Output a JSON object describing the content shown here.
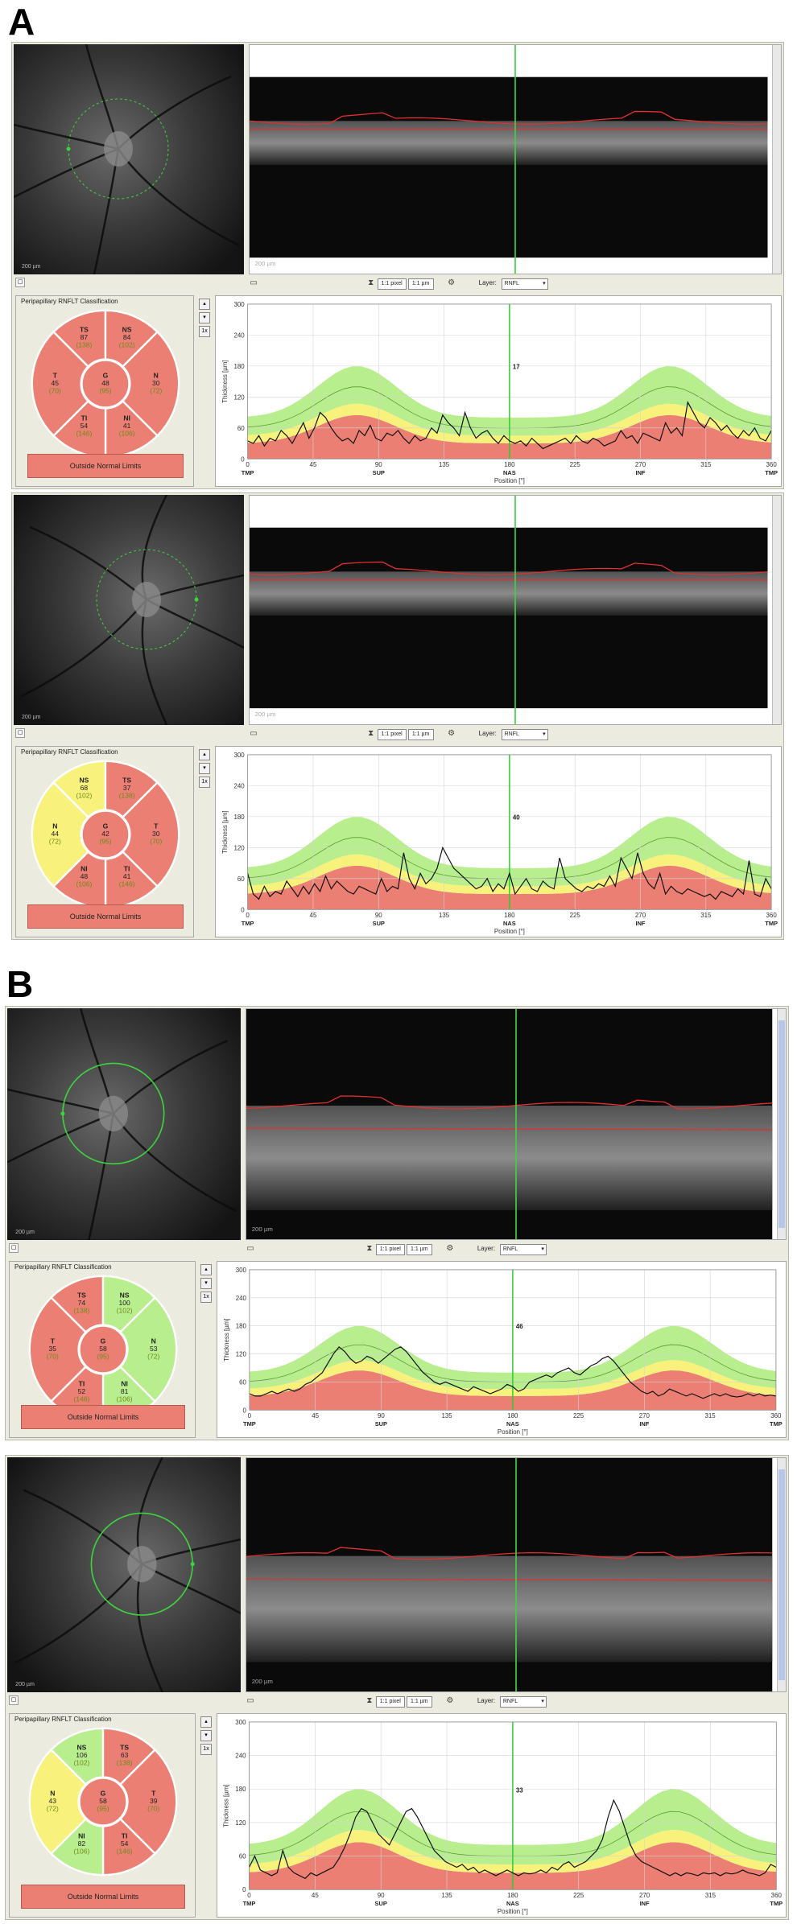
{
  "figure_labels": {
    "a": "A",
    "b": "B"
  },
  "colors": {
    "red": "#ec7f73",
    "yellow": "#f8f17c",
    "green": "#b9ee8e",
    "onl": "#ec7f73"
  },
  "panels": [
    {
      "classification_title": "Peripapillary RNFLT Classification",
      "onl_label": "Outside Normal Limits",
      "toolbar": {
        "zoom1": "1:1 pixel",
        "zoom2": "1:1 µm",
        "layer_label": "Layer:",
        "layer_value": "RNFL"
      },
      "side_button": "1x",
      "scale_bar": "200 µm",
      "sectors": {
        "TS": {
          "name": "TS",
          "value": "87",
          "normal": "(138)",
          "color": "red"
        },
        "NS": {
          "name": "NS",
          "value": "84",
          "normal": "(102)",
          "color": "red"
        },
        "T": {
          "name": "T",
          "value": "45",
          "normal": "(70)",
          "color": "red"
        },
        "G": {
          "name": "G",
          "value": "48",
          "normal": "(95)",
          "color": "red"
        },
        "N": {
          "name": "N",
          "value": "30",
          "normal": "(72)",
          "color": "red"
        },
        "TI": {
          "name": "TI",
          "value": "54",
          "normal": "(146)",
          "color": "red"
        },
        "NI": {
          "name": "NI",
          "value": "41",
          "normal": "(106)",
          "color": "red"
        }
      },
      "mirrored": false,
      "chart_data": {
        "type": "line",
        "ylabel": "Thickness [µm]",
        "xlabel": "Position [°]",
        "x_ticks": [
          "0",
          "45",
          "90",
          "135",
          "180",
          "225",
          "270",
          "315",
          "360"
        ],
        "x_region_labels": [
          "TMP",
          "SUP",
          "NAS",
          "INF",
          "TMP"
        ],
        "y_ticks": [
          "0",
          "60",
          "120",
          "180",
          "240",
          "300"
        ],
        "ylim": [
          0,
          300
        ],
        "marker_value": "17",
        "series": [
          {
            "values": [
              35,
              30,
              45,
              25,
              40,
              35,
              55,
              45,
              30,
              50,
              70,
              40,
              60,
              90,
              80,
              60,
              45,
              35,
              40,
              30,
              55,
              45,
              65,
              40,
              35,
              50,
              45,
              55,
              40,
              30,
              45,
              35,
              40,
              60,
              50,
              85,
              70,
              60,
              45,
              90,
              60,
              40,
              50,
              55,
              40,
              30,
              45,
              35,
              30,
              35,
              25,
              40,
              30,
              20,
              25,
              30,
              35,
              40,
              30,
              45,
              35,
              30,
              40,
              35,
              25,
              30,
              35,
              55,
              40,
              45,
              30,
              50,
              45,
              40,
              35,
              70,
              50,
              60,
              45,
              110,
              90,
              70,
              60,
              80,
              70,
              55,
              65,
              50,
              40,
              55,
              45,
              60,
              40,
              35,
              55
            ]
          }
        ]
      }
    },
    {
      "classification_title": "Peripapillary RNFLT Classification",
      "onl_label": "Outside Normal Limits",
      "toolbar": {
        "zoom1": "1:1 pixel",
        "zoom2": "1:1 µm",
        "layer_label": "Layer:",
        "layer_value": "RNFL"
      },
      "side_button": "1x",
      "scale_bar": "200 µm",
      "sectors": {
        "TS": {
          "name": "NS",
          "value": "68",
          "normal": "(102)",
          "color": "yellow"
        },
        "NS": {
          "name": "TS",
          "value": "37",
          "normal": "(138)",
          "color": "red"
        },
        "T": {
          "name": "N",
          "value": "44",
          "normal": "(72)",
          "color": "yellow"
        },
        "G": {
          "name": "G",
          "value": "42",
          "normal": "(95)",
          "color": "red"
        },
        "N": {
          "name": "T",
          "value": "30",
          "normal": "(70)",
          "color": "red"
        },
        "TI": {
          "name": "NI",
          "value": "48",
          "normal": "(106)",
          "color": "red"
        },
        "NI": {
          "name": "TI",
          "value": "41",
          "normal": "(146)",
          "color": "red"
        }
      },
      "mirrored": true,
      "chart_data": {
        "type": "line",
        "ylabel": "Thickness [µm]",
        "xlabel": "Position [°]",
        "x_ticks": [
          "0",
          "45",
          "90",
          "135",
          "180",
          "225",
          "270",
          "315",
          "360"
        ],
        "x_region_labels": [
          "TMP",
          "SUP",
          "NAS",
          "INF",
          "TMP"
        ],
        "y_ticks": [
          "0",
          "60",
          "120",
          "180",
          "240",
          "300"
        ],
        "ylim": [
          0,
          300
        ],
        "marker_value": "40",
        "series": [
          {
            "values": [
              70,
              30,
              20,
              45,
              25,
              35,
              30,
              55,
              40,
              25,
              45,
              30,
              50,
              35,
              65,
              40,
              55,
              45,
              35,
              30,
              45,
              40,
              35,
              30,
              60,
              35,
              45,
              40,
              110,
              60,
              40,
              70,
              50,
              60,
              80,
              120,
              100,
              80,
              70,
              60,
              50,
              40,
              45,
              60,
              35,
              50,
              40,
              70,
              30,
              45,
              60,
              40,
              35,
              55,
              45,
              40,
              100,
              60,
              50,
              40,
              35,
              45,
              40,
              50,
              45,
              65,
              45,
              100,
              80,
              60,
              110,
              70,
              50,
              40,
              70,
              30,
              45,
              35,
              30,
              40,
              35,
              30,
              25,
              30,
              20,
              35,
              30,
              25,
              40,
              30,
              95,
              30,
              25,
              60,
              40
            ]
          }
        ]
      }
    },
    {
      "classification_title": "Peripapillary RNFLT Classification",
      "onl_label": "Outside Normal Limits",
      "toolbar": {
        "zoom1": "1:1 pixel",
        "zoom2": "1:1 µm",
        "layer_label": "Layer:",
        "layer_value": "RNFL"
      },
      "side_button": "1x",
      "scale_bar": "200 µm",
      "sectors": {
        "TS": {
          "name": "TS",
          "value": "74",
          "normal": "(138)",
          "color": "red"
        },
        "NS": {
          "name": "NS",
          "value": "100",
          "normal": "(102)",
          "color": "green"
        },
        "T": {
          "name": "T",
          "value": "35",
          "normal": "(70)",
          "color": "red"
        },
        "G": {
          "name": "G",
          "value": "58",
          "normal": "(95)",
          "color": "red"
        },
        "N": {
          "name": "N",
          "value": "53",
          "normal": "(72)",
          "color": "green"
        },
        "TI": {
          "name": "TI",
          "value": "52",
          "normal": "(146)",
          "color": "red"
        },
        "NI": {
          "name": "NI",
          "value": "81",
          "normal": "(106)",
          "color": "green"
        }
      },
      "mirrored": false,
      "chart_data": {
        "type": "line",
        "ylabel": "Thickness [µm]",
        "xlabel": "Position [°]",
        "x_ticks": [
          "0",
          "45",
          "90",
          "135",
          "180",
          "225",
          "270",
          "315",
          "360"
        ],
        "x_region_labels": [
          "TMP",
          "SUP",
          "NAS",
          "INF",
          "TMP"
        ],
        "y_ticks": [
          "0",
          "60",
          "120",
          "180",
          "240",
          "300"
        ],
        "ylim": [
          0,
          300
        ],
        "marker_value": "46",
        "series": [
          {
            "values": [
              35,
              30,
              30,
              35,
              40,
              35,
              40,
              45,
              40,
              45,
              55,
              60,
              70,
              80,
              100,
              120,
              135,
              125,
              110,
              100,
              105,
              115,
              110,
              100,
              110,
              120,
              130,
              135,
              125,
              110,
              95,
              80,
              70,
              60,
              55,
              60,
              55,
              50,
              45,
              40,
              50,
              45,
              40,
              35,
              40,
              45,
              55,
              50,
              40,
              45,
              60,
              65,
              70,
              75,
              70,
              80,
              85,
              90,
              80,
              75,
              85,
              95,
              100,
              110,
              115,
              105,
              90,
              75,
              60,
              50,
              40,
              35,
              40,
              30,
              35,
              45,
              40,
              35,
              30,
              35,
              30,
              25,
              30,
              35,
              30,
              35,
              30,
              28,
              30,
              35,
              30,
              35,
              30,
              32,
              30
            ]
          }
        ]
      }
    },
    {
      "classification_title": "Peripapillary RNFLT Classification",
      "onl_label": "Outside Normal Limits",
      "toolbar": {
        "zoom1": "1:1 pixel",
        "zoom2": "1:1 µm",
        "layer_label": "Layer:",
        "layer_value": "RNFL"
      },
      "side_button": "1x",
      "scale_bar": "200 µm",
      "sectors": {
        "TS": {
          "name": "NS",
          "value": "106",
          "normal": "(102)",
          "color": "green"
        },
        "NS": {
          "name": "TS",
          "value": "63",
          "normal": "(138)",
          "color": "red"
        },
        "T": {
          "name": "N",
          "value": "43",
          "normal": "(72)",
          "color": "yellow"
        },
        "G": {
          "name": "G",
          "value": "58",
          "normal": "(95)",
          "color": "red"
        },
        "N": {
          "name": "T",
          "value": "39",
          "normal": "(70)",
          "color": "red"
        },
        "TI": {
          "name": "NI",
          "value": "82",
          "normal": "(106)",
          "color": "green"
        },
        "NI": {
          "name": "TI",
          "value": "54",
          "normal": "(146)",
          "color": "red"
        }
      },
      "mirrored": true,
      "chart_data": {
        "type": "line",
        "ylabel": "Thickness [µm]",
        "xlabel": "Position [°]",
        "x_ticks": [
          "0",
          "45",
          "90",
          "135",
          "180",
          "225",
          "270",
          "315",
          "360"
        ],
        "x_region_labels": [
          "TMP",
          "SUP",
          "NAS",
          "INF",
          "TMP"
        ],
        "y_ticks": [
          "0",
          "60",
          "120",
          "180",
          "240",
          "300"
        ],
        "ylim": [
          0,
          300
        ],
        "marker_value": "33",
        "series": [
          {
            "values": [
              40,
              60,
              35,
              30,
              25,
              30,
              70,
              40,
              30,
              25,
              20,
              30,
              25,
              30,
              35,
              40,
              55,
              75,
              100,
              130,
              145,
              140,
              120,
              100,
              90,
              80,
              100,
              120,
              140,
              145,
              130,
              110,
              90,
              70,
              60,
              50,
              45,
              40,
              45,
              35,
              40,
              30,
              35,
              30,
              25,
              30,
              35,
              30,
              25,
              30,
              28,
              30,
              35,
              30,
              40,
              35,
              45,
              50,
              40,
              45,
              50,
              60,
              70,
              90,
              130,
              160,
              140,
              110,
              80,
              60,
              50,
              45,
              40,
              35,
              30,
              25,
              30,
              25,
              30,
              28,
              25,
              30,
              28,
              30,
              25,
              30,
              28,
              30,
              35,
              30,
              28,
              25,
              30,
              45,
              40
            ]
          }
        ]
      }
    }
  ]
}
